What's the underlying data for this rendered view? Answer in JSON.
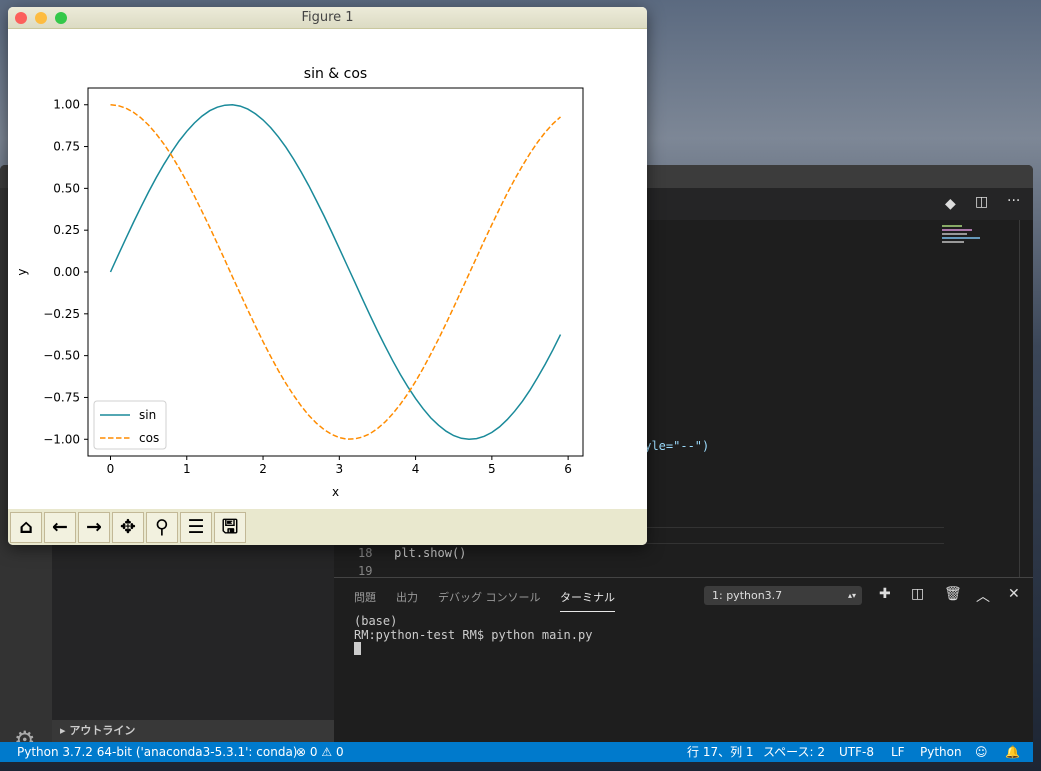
{
  "vscode": {
    "editor": {
      "partial_line": "tyle=\"--\")",
      "lines": [
        {
          "num": "18",
          "code": "plt.show()"
        },
        {
          "num": "19",
          "code": ""
        }
      ]
    },
    "sidebar": {
      "outline": "アウトライン"
    },
    "panel": {
      "tabs": [
        "問題",
        "出力",
        "デバッグ コンソール",
        "ターミナル"
      ],
      "active_tab": "ターミナル",
      "terminal_select": "1: python3.7",
      "terminal_lines": [
        "(base)",
        "RM:python-test RM$ python main.py"
      ]
    },
    "status": {
      "interpreter": "Python 3.7.2 64-bit ('anaconda3-5.3.1': conda)",
      "errors": "0",
      "warnings": "0",
      "position": "行 17、列 1",
      "spaces": "スペース: 2",
      "encoding": "UTF-8",
      "eol": "LF",
      "language": "Python",
      "color": "#007acc"
    }
  },
  "figure": {
    "window_title": "Figure 1",
    "toolbar": [
      "home-icon",
      "back-arrow-icon",
      "forward-arrow-icon",
      "pan-icon",
      "zoom-icon",
      "configure-subplots-icon",
      "save-icon"
    ]
  },
  "chart_data": {
    "type": "line",
    "title": "sin & cos",
    "xlabel": "x",
    "ylabel": "y",
    "xlim": [
      -0.295,
      6.195
    ],
    "ylim": [
      -1.1,
      1.1
    ],
    "xticks": [
      "0",
      "1",
      "2",
      "3",
      "4",
      "5",
      "6"
    ],
    "yticks": [
      "1.00",
      "0.75",
      "0.50",
      "0.25",
      "0.00",
      "−0.25",
      "−0.50",
      "−0.75",
      "−1.00"
    ],
    "legend": "lower-left",
    "grid": false,
    "x": [
      0,
      0.1,
      0.2,
      0.3,
      0.4,
      0.5,
      0.6,
      0.7,
      0.8,
      0.9,
      1.0,
      1.1,
      1.2,
      1.3,
      1.4,
      1.5,
      1.6,
      1.7,
      1.8,
      1.9,
      2.0,
      2.1,
      2.2,
      2.3,
      2.4,
      2.5,
      2.6,
      2.7,
      2.8,
      2.9,
      3.0,
      3.1,
      3.2,
      3.3,
      3.4,
      3.5,
      3.6,
      3.7,
      3.8,
      3.9,
      4.0,
      4.1,
      4.2,
      4.3,
      4.4,
      4.5,
      4.6,
      4.7,
      4.8,
      4.9,
      5.0,
      5.1,
      5.2,
      5.3,
      5.4,
      5.5,
      5.6,
      5.7,
      5.8,
      5.9
    ],
    "series": [
      {
        "name": "sin",
        "color": "#1a8a9a",
        "style": "solid",
        "values": [
          0,
          0.1,
          0.199,
          0.296,
          0.389,
          0.479,
          0.565,
          0.644,
          0.717,
          0.783,
          0.841,
          0.891,
          0.932,
          0.964,
          0.985,
          0.997,
          1.0,
          0.992,
          0.974,
          0.946,
          0.909,
          0.863,
          0.808,
          0.746,
          0.675,
          0.598,
          0.516,
          0.427,
          0.335,
          0.239,
          0.141,
          0.042,
          -0.058,
          -0.158,
          -0.256,
          -0.351,
          -0.443,
          -0.53,
          -0.612,
          -0.688,
          -0.757,
          -0.818,
          -0.872,
          -0.916,
          -0.952,
          -0.978,
          -0.994,
          -1.0,
          -0.996,
          -0.982,
          -0.959,
          -0.926,
          -0.883,
          -0.832,
          -0.773,
          -0.706,
          -0.631,
          -0.551,
          -0.465,
          -0.374
        ]
      },
      {
        "name": "cos",
        "color": "#ff8c00",
        "style": "dashed",
        "values": [
          1,
          0.995,
          0.98,
          0.955,
          0.921,
          0.878,
          0.825,
          0.765,
          0.697,
          0.622,
          0.54,
          0.454,
          0.362,
          0.267,
          0.17,
          0.071,
          -0.029,
          -0.129,
          -0.227,
          -0.323,
          -0.416,
          -0.505,
          -0.589,
          -0.666,
          -0.737,
          -0.801,
          -0.857,
          -0.904,
          -0.942,
          -0.971,
          -0.99,
          -0.999,
          -0.998,
          -0.987,
          -0.967,
          -0.936,
          -0.897,
          -0.848,
          -0.791,
          -0.726,
          -0.654,
          -0.575,
          -0.49,
          -0.401,
          -0.307,
          -0.211,
          -0.112,
          -0.012,
          0.087,
          0.187,
          0.284,
          0.378,
          0.469,
          0.554,
          0.635,
          0.709,
          0.776,
          0.835,
          0.886,
          0.927
        ]
      }
    ]
  }
}
